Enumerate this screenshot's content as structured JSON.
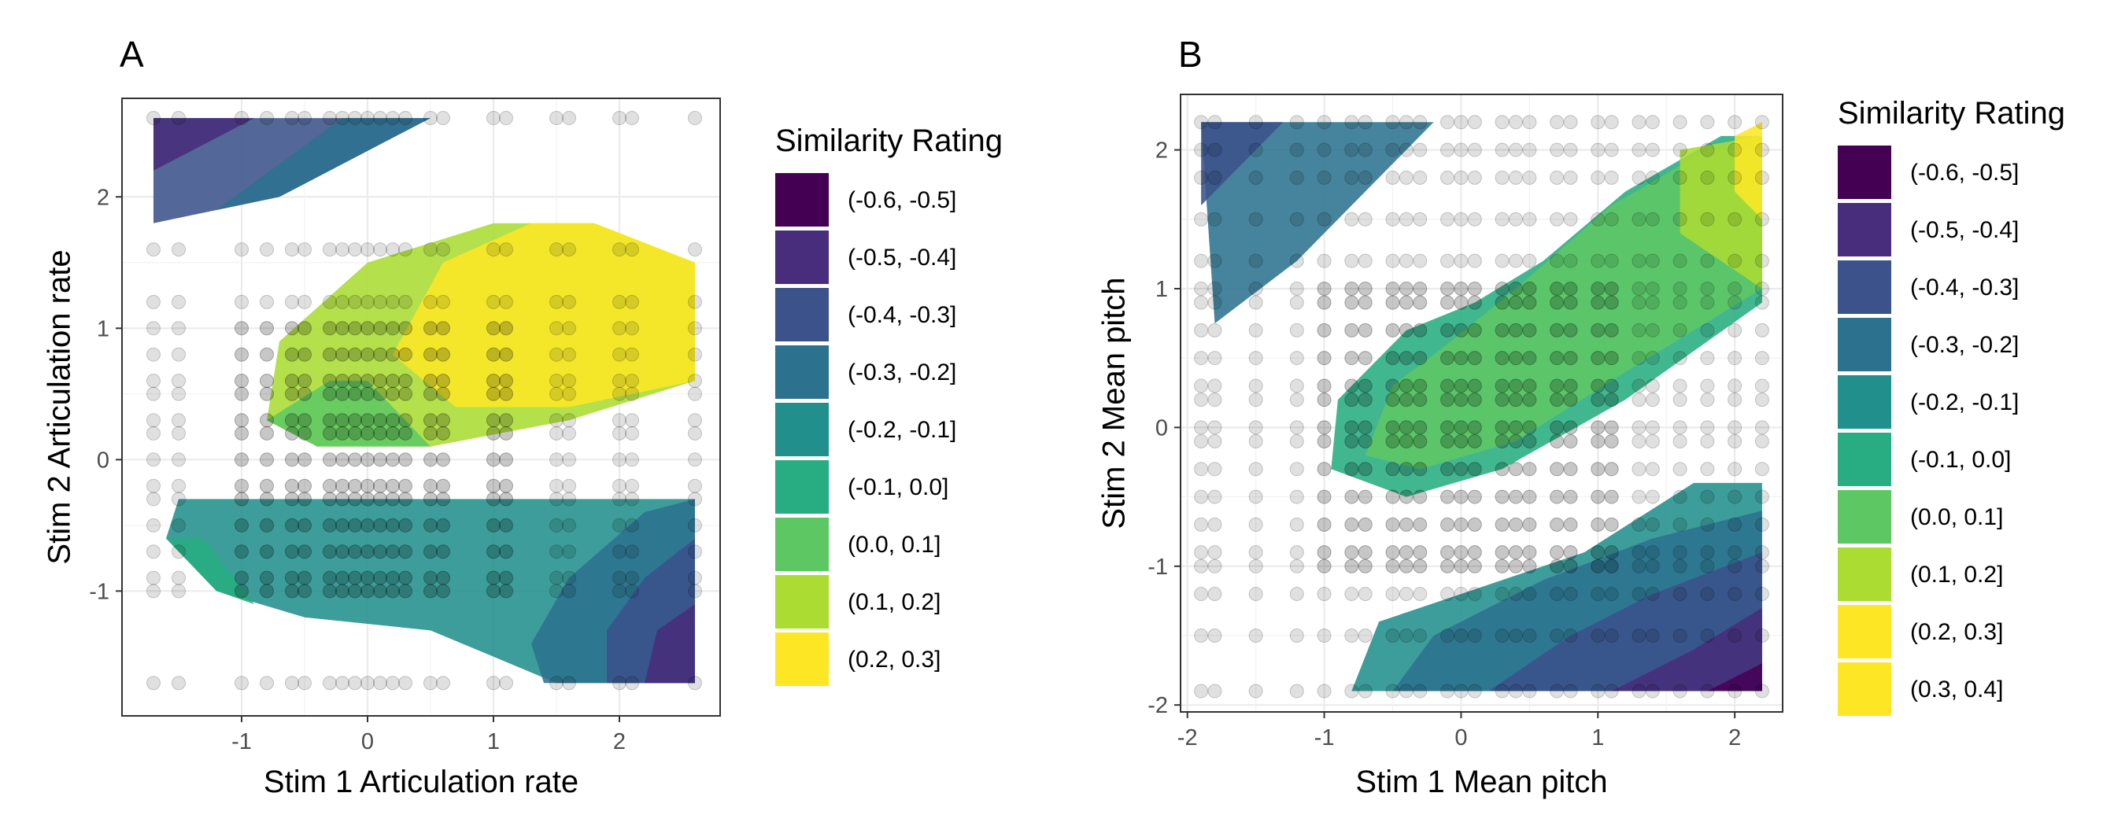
{
  "chart_data": [
    {
      "type": "contour",
      "panel_label": "A",
      "xlabel": "Stim 1 Articulation rate",
      "ylabel": "Stim 2 Articulation rate",
      "xlim": [
        -1.95,
        2.8
      ],
      "ylim": [
        -1.95,
        2.75
      ],
      "xticks": [
        -1,
        0,
        1,
        2
      ],
      "yticks": [
        -1,
        0,
        1,
        2
      ],
      "grid": true,
      "legend_position": "right",
      "legend": {
        "title": "Similarity Rating",
        "entries": [
          {
            "label": "(-0.6, -0.5]",
            "color": "#440154"
          },
          {
            "label": "(-0.5, -0.4]",
            "color": "#472D7B"
          },
          {
            "label": "(-0.4, -0.3]",
            "color": "#3B528B"
          },
          {
            "label": "(-0.3, -0.2]",
            "color": "#2C728E"
          },
          {
            "label": "(-0.2, -0.1]",
            "color": "#21908C"
          },
          {
            "label": "(-0.1, 0.0]",
            "color": "#27AD81"
          },
          {
            "label": "(0.0, 0.1]",
            "color": "#5DC863"
          },
          {
            "label": "(0.1, 0.2]",
            "color": "#AADC32"
          },
          {
            "label": "(0.2, 0.3]",
            "color": "#FDE725"
          }
        ]
      },
      "regions": [
        {
          "level": "(-0.4, -0.3]",
          "points": [
            [
              -1.7,
              2.6
            ],
            [
              0.5,
              2.6
            ],
            [
              -0.7,
              2.0
            ],
            [
              -1.7,
              1.8
            ]
          ]
        },
        {
          "level": "(-0.5, -0.4]",
          "points": [
            [
              -1.7,
              2.6
            ],
            [
              -0.9,
              2.6
            ],
            [
              -1.7,
              2.2
            ]
          ]
        },
        {
          "level": "(-0.3, -0.2]",
          "points": [
            [
              -0.2,
              2.6
            ],
            [
              0.5,
              2.6
            ],
            [
              -0.7,
              2.0
            ],
            [
              -1.2,
              1.9
            ]
          ]
        },
        {
          "level": "(0.1, 0.2]",
          "points": [
            [
              -0.8,
              0.3
            ],
            [
              -0.7,
              0.9
            ],
            [
              0.0,
              1.5
            ],
            [
              1.0,
              1.8
            ],
            [
              1.8,
              1.8
            ],
            [
              2.6,
              1.5
            ],
            [
              2.6,
              0.6
            ],
            [
              1.6,
              0.3
            ],
            [
              0.5,
              0.1
            ],
            [
              -0.4,
              0.1
            ]
          ]
        },
        {
          "level": "(0.0, 0.1]",
          "points": [
            [
              -0.8,
              0.3
            ],
            [
              -0.4,
              0.1
            ],
            [
              0.5,
              0.1
            ],
            [
              0.0,
              0.6
            ],
            [
              -0.3,
              0.6
            ]
          ]
        },
        {
          "level": "(0.2, 0.3]",
          "points": [
            [
              0.2,
              0.8
            ],
            [
              0.6,
              1.5
            ],
            [
              1.3,
              1.8
            ],
            [
              1.8,
              1.8
            ],
            [
              2.6,
              1.5
            ],
            [
              2.6,
              0.6
            ],
            [
              1.6,
              0.4
            ],
            [
              0.7,
              0.4
            ]
          ]
        },
        {
          "level": "(-0.2, -0.1]",
          "points": [
            [
              -1.5,
              -0.3
            ],
            [
              -1.6,
              -0.6
            ],
            [
              -1.2,
              -1.0
            ],
            [
              -0.5,
              -1.2
            ],
            [
              0.5,
              -1.3
            ],
            [
              1.5,
              -1.7
            ],
            [
              2.6,
              -1.7
            ],
            [
              2.6,
              -0.3
            ],
            [
              0.5,
              -0.3
            ]
          ]
        },
        {
          "level": "(-0.1, 0.0]",
          "points": [
            [
              -1.6,
              -0.6
            ],
            [
              -1.2,
              -1.0
            ],
            [
              -0.9,
              -1.1
            ],
            [
              -1.3,
              -0.6
            ]
          ]
        },
        {
          "level": "(-0.3, -0.2]",
          "points": [
            [
              1.4,
              -1.7
            ],
            [
              2.6,
              -1.7
            ],
            [
              2.6,
              -0.3
            ],
            [
              2.2,
              -0.4
            ],
            [
              1.6,
              -0.9
            ],
            [
              1.3,
              -1.4
            ]
          ]
        },
        {
          "level": "(-0.4, -0.3]",
          "points": [
            [
              1.9,
              -1.7
            ],
            [
              2.6,
              -1.7
            ],
            [
              2.6,
              -0.6
            ],
            [
              2.2,
              -0.9
            ],
            [
              1.9,
              -1.3
            ]
          ]
        },
        {
          "level": "(-0.5, -0.4]",
          "points": [
            [
              2.2,
              -1.7
            ],
            [
              2.6,
              -1.7
            ],
            [
              2.6,
              -1.1
            ],
            [
              2.3,
              -1.3
            ]
          ]
        }
      ],
      "scatter": {
        "x": [
          -1.7,
          -1.5,
          -1.0,
          -0.8,
          -0.6,
          -0.5,
          -0.3,
          -0.2,
          -0.1,
          0.0,
          0.1,
          0.2,
          0.3,
          0.5,
          0.6,
          1.0,
          1.1,
          1.5,
          1.6,
          2.0,
          2.1,
          2.6
        ],
        "y": [
          -1.7,
          -1.0,
          -0.9,
          -0.7,
          -0.5,
          -0.3,
          -0.2,
          0.0,
          0.2,
          0.3,
          0.5,
          0.6,
          0.8,
          1.0,
          1.2,
          1.6,
          2.6
        ]
      }
    },
    {
      "type": "contour",
      "panel_label": "B",
      "xlabel": "Stim 1 Mean pitch",
      "ylabel": "Stim 2 Mean pitch",
      "xlim": [
        -2.05,
        2.35
      ],
      "ylim": [
        -2.05,
        2.4
      ],
      "xticks": [
        -2,
        -1,
        0,
        1,
        2
      ],
      "yticks": [
        -2,
        -1,
        0,
        1,
        2
      ],
      "grid": true,
      "legend_position": "right",
      "legend": {
        "title": "Similarity Rating",
        "entries": [
          {
            "label": "(-0.6, -0.5]",
            "color": "#440154"
          },
          {
            "label": "(-0.5, -0.4]",
            "color": "#472D7B"
          },
          {
            "label": "(-0.4, -0.3]",
            "color": "#3B528B"
          },
          {
            "label": "(-0.3, -0.2]",
            "color": "#2C728E"
          },
          {
            "label": "(-0.2, -0.1]",
            "color": "#21908C"
          },
          {
            "label": "(-0.1, 0.0]",
            "color": "#27AD81"
          },
          {
            "label": "(0.0, 0.1]",
            "color": "#5DC863"
          },
          {
            "label": "(0.1, 0.2]",
            "color": "#AADC32"
          },
          {
            "label": "(0.2, 0.3]",
            "color": "#FDE725"
          },
          {
            "label": "(0.3, 0.4]",
            "color": "#FDE725"
          }
        ]
      },
      "regions": [
        {
          "level": "(-0.3, -0.2]",
          "points": [
            [
              -1.9,
              2.2
            ],
            [
              -0.2,
              2.2
            ],
            [
              -1.2,
              1.2
            ],
            [
              -1.8,
              0.75
            ]
          ]
        },
        {
          "level": "(-0.4, -0.3]",
          "points": [
            [
              -1.9,
              2.2
            ],
            [
              -1.3,
              2.2
            ],
            [
              -1.9,
              1.6
            ]
          ]
        },
        {
          "level": "(-0.1, 0.0]",
          "points": [
            [
              -0.95,
              -0.3
            ],
            [
              -0.9,
              0.2
            ],
            [
              -0.4,
              0.7
            ],
            [
              0.1,
              0.9
            ],
            [
              0.6,
              1.2
            ],
            [
              1.2,
              1.7
            ],
            [
              1.9,
              2.1
            ],
            [
              2.2,
              2.1
            ],
            [
              2.2,
              0.9
            ],
            [
              1.2,
              0.2
            ],
            [
              0.3,
              -0.3
            ],
            [
              -0.4,
              -0.5
            ]
          ]
        },
        {
          "level": "(0.0, 0.1]",
          "points": [
            [
              -0.7,
              -0.2
            ],
            [
              -0.5,
              0.3
            ],
            [
              -0.1,
              0.6
            ],
            [
              0.4,
              1.0
            ],
            [
              1.1,
              1.6
            ],
            [
              1.8,
              2.0
            ],
            [
              2.2,
              2.0
            ],
            [
              2.2,
              1.0
            ],
            [
              1.2,
              0.4
            ],
            [
              0.4,
              -0.1
            ],
            [
              -0.3,
              -0.3
            ]
          ]
        },
        {
          "level": "(0.1, 0.2]",
          "points": [
            [
              1.6,
              2.0
            ],
            [
              2.2,
              2.1
            ],
            [
              2.2,
              1.0
            ],
            [
              1.6,
              1.4
            ]
          ]
        },
        {
          "level": "(0.2, 0.3]",
          "points": [
            [
              2.0,
              2.1
            ],
            [
              2.2,
              2.2
            ],
            [
              2.2,
              1.5
            ],
            [
              2.0,
              1.7
            ]
          ]
        },
        {
          "level": "(-0.2, -0.1]",
          "points": [
            [
              -0.8,
              -1.9
            ],
            [
              2.2,
              -1.9
            ],
            [
              2.2,
              -0.4
            ],
            [
              1.7,
              -0.4
            ],
            [
              0.9,
              -0.9
            ],
            [
              0.3,
              -1.1
            ],
            [
              -0.6,
              -1.4
            ]
          ]
        },
        {
          "level": "(-0.3, -0.2]",
          "points": [
            [
              -0.5,
              -1.9
            ],
            [
              2.2,
              -1.9
            ],
            [
              2.2,
              -0.6
            ],
            [
              1.4,
              -0.8
            ],
            [
              0.6,
              -1.1
            ],
            [
              -0.2,
              -1.5
            ]
          ]
        },
        {
          "level": "(-0.4, -0.3]",
          "points": [
            [
              0.2,
              -1.9
            ],
            [
              2.2,
              -1.9
            ],
            [
              2.2,
              -0.9
            ],
            [
              1.4,
              -1.2
            ],
            [
              0.8,
              -1.5
            ]
          ]
        },
        {
          "level": "(-0.5, -0.4]",
          "points": [
            [
              1.1,
              -1.9
            ],
            [
              2.2,
              -1.9
            ],
            [
              2.2,
              -1.3
            ],
            [
              1.7,
              -1.6
            ]
          ]
        },
        {
          "level": "(-0.6, -0.5]",
          "points": [
            [
              1.8,
              -1.9
            ],
            [
              2.2,
              -1.9
            ],
            [
              2.2,
              -1.7
            ]
          ]
        }
      ],
      "scatter": {
        "x": [
          -1.9,
          -1.8,
          -1.5,
          -1.2,
          -1.0,
          -0.8,
          -0.7,
          -0.5,
          -0.4,
          -0.3,
          -0.1,
          0.0,
          0.1,
          0.3,
          0.4,
          0.5,
          0.7,
          0.8,
          1.0,
          1.1,
          1.3,
          1.4,
          1.6,
          1.8,
          2.0,
          2.2
        ],
        "y": [
          -1.9,
          -1.5,
          -1.2,
          -1.0,
          -0.9,
          -0.7,
          -0.5,
          -0.3,
          -0.1,
          0.0,
          0.2,
          0.3,
          0.5,
          0.7,
          0.9,
          1.0,
          1.2,
          1.5,
          1.8,
          2.0,
          2.2
        ]
      }
    }
  ]
}
